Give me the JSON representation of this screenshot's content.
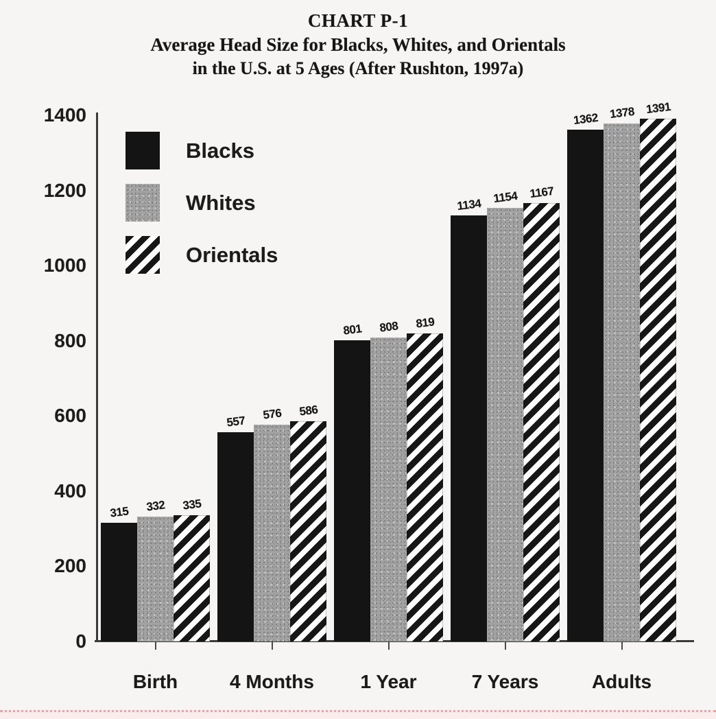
{
  "title": {
    "line1": "CHART P-1",
    "line2": "Average Head Size for Blacks, Whites, and Orientals",
    "line3": "in the U.S. at 5 Ages (After Rushton, 1997a)"
  },
  "legend": {
    "items": [
      {
        "label": "Blacks",
        "swatch": "solid-black"
      },
      {
        "label": "Whites",
        "swatch": "speckled-gray"
      },
      {
        "label": "Orientals",
        "swatch": "diagonal-stripes"
      }
    ]
  },
  "colors": {
    "bar_black": "#141414",
    "bar_gray": "#a2a2a2",
    "stripe_black": "#161616",
    "axis": "#3a3a3a",
    "background": "#f6f5f3",
    "bottom_dotted_line": "#e37a7a"
  },
  "chart_data": {
    "type": "bar",
    "title": "CHART P-1",
    "subtitle": "Average Head Size for Blacks, Whites, and Orientals in the U.S. at 5 Ages (After Rushton, 1997a)",
    "categories": [
      "Birth",
      "4 Months",
      "1 Year",
      "7 Years",
      "Adults"
    ],
    "series": [
      {
        "name": "Blacks",
        "values": [
          315,
          557,
          801,
          1134,
          1362
        ]
      },
      {
        "name": "Whites",
        "values": [
          332,
          576,
          808,
          1154,
          1378
        ]
      },
      {
        "name": "Orientals",
        "values": [
          335,
          586,
          819,
          1167,
          1391
        ]
      }
    ],
    "ylim": [
      0,
      1400
    ],
    "ytick_interval": 200,
    "yticks": [
      "0",
      "200",
      "400",
      "600",
      "800",
      "1000",
      "1200",
      "1400"
    ],
    "xlabel": "",
    "ylabel": "",
    "grid": false,
    "legend_position": "top-left",
    "bar_value_labels": true
  }
}
